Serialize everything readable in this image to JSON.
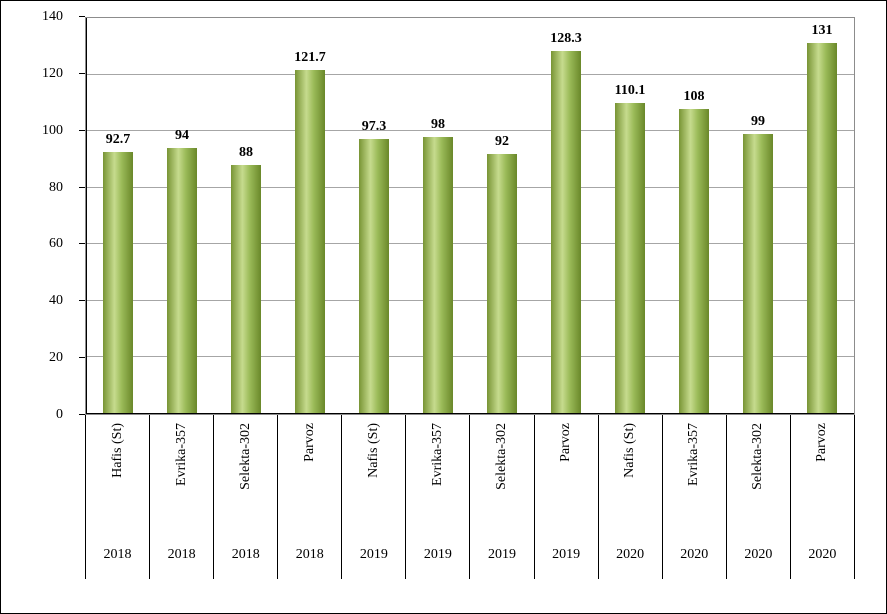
{
  "figure": {
    "background": "#ffffff",
    "border_color": "#000000"
  },
  "chart_data": {
    "type": "bar",
    "title": "",
    "xlabel": "",
    "ylabel": "",
    "categories": [
      "Hafis (St)",
      "Evrika-357",
      "Selekta-302",
      "Parvoz",
      "Nafis (St)",
      "Evrika-357",
      "Selekta-302",
      "Parvoz",
      "Nafis (St)",
      "Evrika-357",
      "Selekta-302",
      "Parvoz"
    ],
    "group_labels": [
      "2018",
      "2018",
      "2018",
      "2018",
      "2019",
      "2019",
      "2019",
      "2019",
      "2020",
      "2020",
      "2020",
      "2020"
    ],
    "values": [
      92.7,
      94,
      88,
      121.7,
      97.3,
      98,
      92,
      128.3,
      110.1,
      108,
      99,
      131
    ],
    "value_labels": [
      "92.7",
      "94",
      "88",
      "121.7",
      "97.3",
      "98",
      "92",
      "128.3",
      "110.1",
      "108",
      "99",
      "131"
    ],
    "ylim": [
      0,
      140
    ],
    "ytick_step": 20,
    "yticks": [
      "0",
      "20",
      "40",
      "60",
      "80",
      "100",
      "120",
      "140"
    ],
    "grid": true,
    "legend": "none",
    "bar_color": "#9bbb59",
    "bar_gradient_left": "#789434",
    "bar_gradient_highlight": "#c6db8e",
    "bar_gradient_right": "#6a882a",
    "gridline_color": "#a6a6a6",
    "axis_color": "#000000"
  }
}
